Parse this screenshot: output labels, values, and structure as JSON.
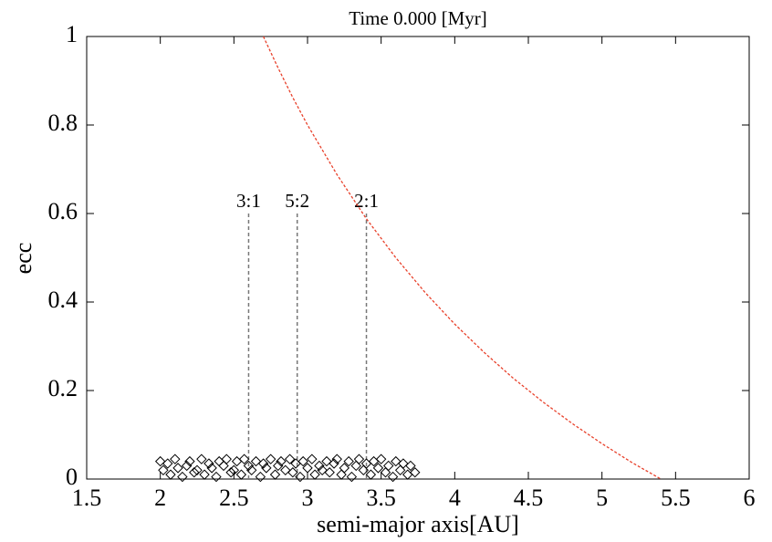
{
  "chart_data": {
    "type": "scatter",
    "title": "Time 0.000 [Myr]",
    "x_label": "semi-major axis[AU]",
    "y_label": "ecc",
    "xlim": [
      1.5,
      6
    ],
    "ylim": [
      0,
      1
    ],
    "xticks": [
      1.5,
      2,
      2.5,
      3,
      3.5,
      4,
      4.5,
      5,
      5.5,
      6
    ],
    "yticks": [
      0,
      0.2,
      0.4,
      0.6,
      0.8,
      1
    ],
    "series": [
      {
        "type": "scatter",
        "color": "#000000",
        "x": [
          2.0,
          2.02,
          2.05,
          2.07,
          2.1,
          2.12,
          2.15,
          2.18,
          2.2,
          2.23,
          2.25,
          2.28,
          2.3,
          2.33,
          2.35,
          2.38,
          2.4,
          2.43,
          2.45,
          2.48,
          2.5,
          2.52,
          2.55,
          2.57,
          2.6,
          2.62,
          2.65,
          2.68,
          2.7,
          2.72,
          2.75,
          2.78,
          2.8,
          2.82,
          2.85,
          2.88,
          2.9,
          2.92,
          2.95,
          2.97,
          3.0,
          3.03,
          3.05,
          3.08,
          3.1,
          3.13,
          3.15,
          3.18,
          3.2,
          3.23,
          3.25,
          3.28,
          3.3,
          3.33,
          3.35,
          3.38,
          3.4,
          3.43,
          3.45,
          3.48,
          3.5,
          3.53,
          3.55,
          3.58,
          3.6,
          3.63,
          3.65,
          3.68,
          3.7,
          3.73
        ],
        "values": [
          0.04,
          0.02,
          0.035,
          0.01,
          0.045,
          0.025,
          0.005,
          0.03,
          0.04,
          0.015,
          0.02,
          0.045,
          0.01,
          0.035,
          0.025,
          0.005,
          0.04,
          0.03,
          0.045,
          0.015,
          0.02,
          0.04,
          0.01,
          0.045,
          0.03,
          0.02,
          0.04,
          0.005,
          0.035,
          0.025,
          0.045,
          0.01,
          0.03,
          0.04,
          0.02,
          0.045,
          0.015,
          0.035,
          0.005,
          0.04,
          0.025,
          0.045,
          0.01,
          0.03,
          0.02,
          0.04,
          0.015,
          0.035,
          0.045,
          0.01,
          0.025,
          0.04,
          0.005,
          0.03,
          0.045,
          0.02,
          0.035,
          0.01,
          0.04,
          0.025,
          0.045,
          0.015,
          0.03,
          0.005,
          0.04,
          0.02,
          0.035,
          0.01,
          0.03,
          0.015
        ]
      },
      {
        "type": "line",
        "color": "#e8402a",
        "dashed": true,
        "x": [
          2.7,
          2.8,
          2.9,
          3.0,
          3.2,
          3.4,
          3.6,
          3.8,
          4.0,
          4.2,
          4.4,
          4.6,
          4.8,
          5.0,
          5.2,
          5.4
        ],
        "values": [
          1,
          0.929,
          0.862,
          0.8,
          0.688,
          0.588,
          0.5,
          0.421,
          0.35,
          0.286,
          0.227,
          0.174,
          0.125,
          0.08,
          0.038,
          0
        ]
      }
    ],
    "annotations": [
      {
        "text": "3:1",
        "x": 2.6,
        "y": 0.6
      },
      {
        "text": "5:2",
        "x": 2.93,
        "y": 0.6
      },
      {
        "text": "2:1",
        "x": 3.4,
        "y": 0.6
      }
    ]
  }
}
